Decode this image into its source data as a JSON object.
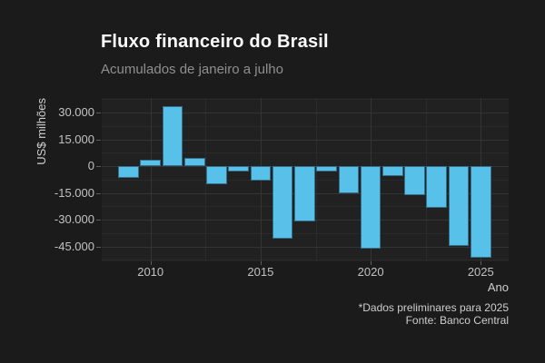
{
  "header": {
    "title": "Fluxo financeiro do Brasil",
    "subtitle": "Acumulados de janeiro a julho"
  },
  "chart_data": {
    "type": "bar",
    "title": "Fluxo financeiro do Brasil",
    "subtitle": "Acumulados de janeiro a julho",
    "xlabel": "Ano",
    "ylabel": "US$ milhões",
    "x": [
      2009,
      2010,
      2011,
      2012,
      2013,
      2014,
      2015,
      2016,
      2017,
      2018,
      2019,
      2020,
      2021,
      2022,
      2023,
      2024,
      2025
    ],
    "values": [
      -6800,
      3400,
      33600,
      4600,
      -9900,
      -3100,
      -8300,
      -40400,
      -31200,
      -3200,
      -15000,
      -46400,
      -5800,
      -16000,
      -23500,
      -44500,
      -51200
    ],
    "y_ticks": [
      {
        "v": 30000,
        "label": "30.000"
      },
      {
        "v": 15000,
        "label": "15.000"
      },
      {
        "v": 0,
        "label": "0"
      },
      {
        "v": -15000,
        "label": "-15.000"
      },
      {
        "v": -30000,
        "label": "-30.000"
      },
      {
        "v": -45000,
        "label": "-45.000"
      }
    ],
    "y_minor": [
      37500,
      22500,
      7500,
      -7500,
      -22500,
      -37500,
      -52500
    ],
    "x_ticks": [
      {
        "v": 2010,
        "label": "2010"
      },
      {
        "v": 2015,
        "label": "2015"
      },
      {
        "v": 2020,
        "label": "2020"
      },
      {
        "v": 2025,
        "label": "2025"
      }
    ],
    "x_minor": [
      2012.5,
      2017.5,
      2022.5
    ],
    "ylim": [
      -55000,
      38000
    ],
    "xlim": [
      2008.3,
      2025.7
    ],
    "grid": true,
    "legend_position": "none",
    "caption": [
      "*Dados preliminares para 2025",
      "Fonte: Banco Central"
    ]
  },
  "colors": {
    "background": "#1b1b1b",
    "panel": "#212121",
    "bar_fill": "#57c1ea",
    "bar_border": "#356e88",
    "grid_major": "#343434",
    "grid_minor": "#2a2a2a",
    "title_text": "#fbfbfb",
    "subtitle_text": "#8f8f8f",
    "axis_text": "#c2c2c2"
  }
}
